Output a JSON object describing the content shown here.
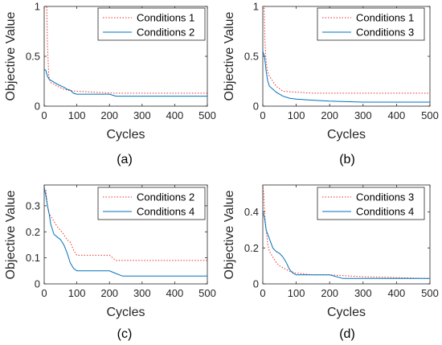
{
  "colors": {
    "red_dotted": "#e8322c",
    "blue_solid": "#0072bd",
    "axis": "#262626"
  },
  "chart_data": [
    {
      "type": "line",
      "caption": "(a)",
      "xlabel": "Cycles",
      "ylabel": "Objective Value",
      "xlim": [
        0,
        500
      ],
      "ylim": [
        0,
        1
      ],
      "xticks": [
        "0",
        "100",
        "200",
        "300",
        "400",
        "500"
      ],
      "yticks": [
        "0",
        "0.5",
        "1"
      ],
      "ytick_values": [
        0,
        0.5,
        1
      ],
      "legend_position": "top-right",
      "series": [
        {
          "name": "Conditions 1",
          "style": "dotted",
          "color": "#e8322c",
          "x": [
            0,
            8,
            10,
            12,
            14,
            18,
            22,
            30,
            40,
            60,
            80,
            100,
            150,
            220,
            300,
            400,
            500
          ],
          "y": [
            1.0,
            1.0,
            0.6,
            0.45,
            0.3,
            0.25,
            0.23,
            0.22,
            0.2,
            0.17,
            0.155,
            0.15,
            0.14,
            0.13,
            0.13,
            0.13,
            0.13
          ]
        },
        {
          "name": "Conditions 2",
          "style": "solid",
          "color": "#0072bd",
          "x": [
            0,
            5,
            10,
            15,
            20,
            30,
            40,
            60,
            70,
            80,
            90,
            100,
            150,
            200,
            220,
            300,
            400,
            500
          ],
          "y": [
            0.37,
            0.36,
            0.3,
            0.27,
            0.26,
            0.24,
            0.22,
            0.19,
            0.17,
            0.16,
            0.13,
            0.12,
            0.12,
            0.12,
            0.1,
            0.1,
            0.1,
            0.1
          ]
        }
      ]
    },
    {
      "type": "line",
      "caption": "(b)",
      "xlabel": "Cycles",
      "ylabel": "Objective Value",
      "xlim": [
        0,
        500
      ],
      "ylim": [
        0,
        1
      ],
      "xticks": [
        "0",
        "100",
        "200",
        "300",
        "400",
        "500"
      ],
      "yticks": [
        "0",
        "0.5",
        "1"
      ],
      "ytick_values": [
        0,
        0.5,
        1
      ],
      "legend_position": "top-right",
      "series": [
        {
          "name": "Conditions 1",
          "style": "dotted",
          "color": "#e8322c",
          "x": [
            0,
            4,
            6,
            8,
            10,
            14,
            20,
            30,
            40,
            60,
            100,
            150,
            200,
            500
          ],
          "y": [
            1.0,
            1.0,
            0.7,
            0.55,
            0.45,
            0.35,
            0.3,
            0.25,
            0.2,
            0.15,
            0.14,
            0.13,
            0.13,
            0.13
          ]
        },
        {
          "name": "Conditions 3",
          "style": "solid",
          "color": "#0072bd",
          "x": [
            0,
            5,
            10,
            15,
            20,
            30,
            40,
            50,
            60,
            80,
            100,
            150,
            200,
            300,
            500
          ],
          "y": [
            0.55,
            0.5,
            0.35,
            0.25,
            0.2,
            0.17,
            0.14,
            0.12,
            0.1,
            0.08,
            0.07,
            0.06,
            0.05,
            0.04,
            0.04
          ]
        }
      ]
    },
    {
      "type": "line",
      "caption": "(c)",
      "xlabel": "Cycles",
      "ylabel": "Objective Value",
      "xlim": [
        0,
        500
      ],
      "ylim": [
        0,
        0.38
      ],
      "xticks": [
        "0",
        "100",
        "200",
        "300",
        "400",
        "500"
      ],
      "yticks": [
        "0",
        "0.1",
        "0.2",
        "0.3"
      ],
      "ytick_values": [
        0,
        0.1,
        0.2,
        0.3
      ],
      "legend_position": "top-right",
      "series": [
        {
          "name": "Conditions 2",
          "style": "dotted",
          "color": "#e8322c",
          "x": [
            0,
            5,
            10,
            15,
            20,
            30,
            40,
            60,
            70,
            80,
            90,
            100,
            150,
            200,
            220,
            300,
            400,
            500
          ],
          "y": [
            0.37,
            0.36,
            0.3,
            0.27,
            0.26,
            0.24,
            0.22,
            0.19,
            0.17,
            0.16,
            0.13,
            0.11,
            0.11,
            0.11,
            0.09,
            0.09,
            0.09,
            0.09
          ]
        },
        {
          "name": "Conditions 4",
          "style": "solid",
          "color": "#0072bd",
          "x": [
            0,
            5,
            10,
            15,
            20,
            30,
            40,
            50,
            60,
            70,
            80,
            90,
            100,
            150,
            200,
            220,
            240,
            300,
            400,
            500
          ],
          "y": [
            0.37,
            0.34,
            0.3,
            0.27,
            0.23,
            0.19,
            0.18,
            0.17,
            0.15,
            0.12,
            0.08,
            0.06,
            0.05,
            0.05,
            0.05,
            0.04,
            0.03,
            0.03,
            0.03,
            0.03
          ]
        }
      ]
    },
    {
      "type": "line",
      "caption": "(d)",
      "xlabel": "Cycles",
      "ylabel": "Objective Value",
      "xlim": [
        0,
        500
      ],
      "ylim": [
        0,
        0.55
      ],
      "xticks": [
        "0",
        "100",
        "200",
        "300",
        "400",
        "500"
      ],
      "yticks": [
        "0",
        "0.2",
        "0.4"
      ],
      "ytick_values": [
        0,
        0.2,
        0.4
      ],
      "legend_position": "top-right",
      "series": [
        {
          "name": "Conditions 3",
          "style": "dotted",
          "color": "#e8322c",
          "x": [
            0,
            3,
            5,
            10,
            15,
            20,
            30,
            40,
            50,
            60,
            80,
            100,
            150,
            200,
            300,
            500
          ],
          "y": [
            0.55,
            0.5,
            0.4,
            0.3,
            0.22,
            0.18,
            0.15,
            0.12,
            0.1,
            0.09,
            0.07,
            0.06,
            0.05,
            0.05,
            0.04,
            0.03
          ]
        },
        {
          "name": "Conditions 4",
          "style": "solid",
          "color": "#0072bd",
          "x": [
            0,
            5,
            10,
            20,
            30,
            40,
            50,
            60,
            70,
            80,
            90,
            100,
            150,
            200,
            240,
            300,
            500
          ],
          "y": [
            0.4,
            0.37,
            0.3,
            0.25,
            0.2,
            0.18,
            0.17,
            0.15,
            0.12,
            0.08,
            0.06,
            0.05,
            0.05,
            0.05,
            0.03,
            0.03,
            0.03
          ]
        }
      ]
    }
  ]
}
